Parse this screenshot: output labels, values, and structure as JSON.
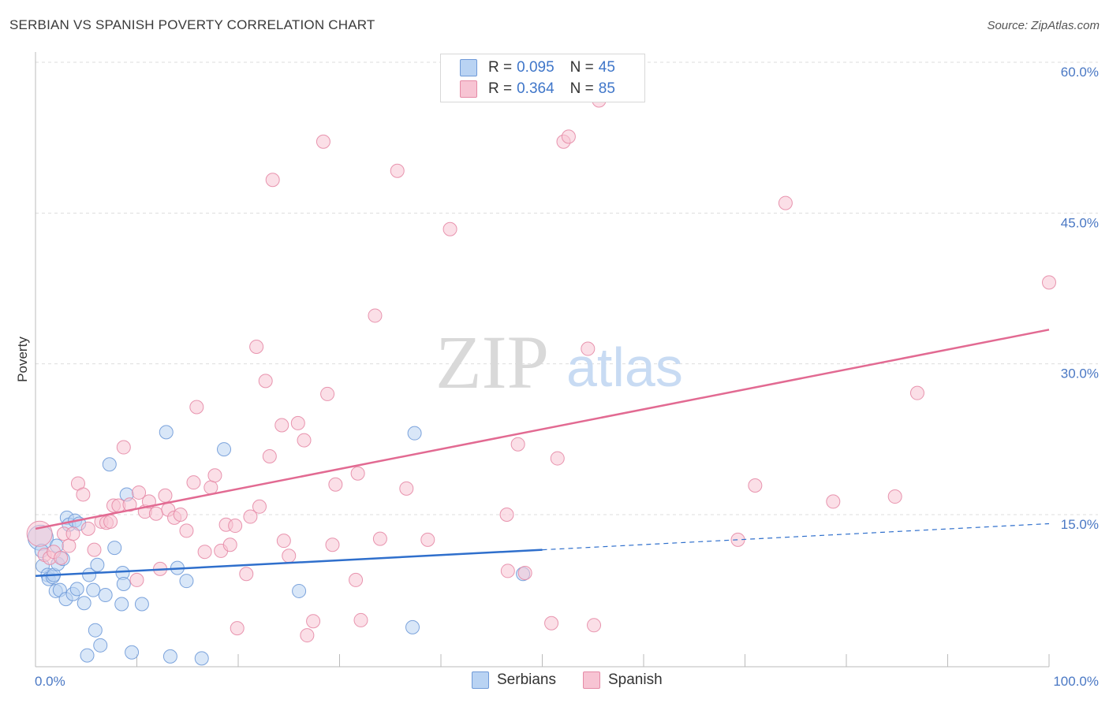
{
  "header": {
    "title": "SERBIAN VS SPANISH POVERTY CORRELATION CHART",
    "source": "Source: ZipAtlas.com"
  },
  "legend": {
    "serbians": {
      "r_label": "R =",
      "r_value": "0.095",
      "n_label": "N =",
      "n_value": "45"
    },
    "spanish": {
      "r_label": "R =",
      "r_value": "0.364",
      "n_label": "N =",
      "n_value": "85"
    }
  },
  "bottom_legend": {
    "serbians": "Serbians",
    "spanish": "Spanish"
  },
  "colors": {
    "serbians_fill": "#b9d3f3",
    "serbians_stroke": "#6f9ad8",
    "serbians_line": "#2f6fcc",
    "spanish_fill": "#f7c4d3",
    "spanish_stroke": "#e58aa6",
    "spanish_line": "#e26a92",
    "axis_label": "#4a78c4",
    "grid": "#dddddd"
  },
  "watermark": {
    "zip": "ZIP",
    "atlas": "atlas"
  },
  "chart_data": {
    "type": "scatter",
    "title": "SERBIAN VS SPANISH POVERTY CORRELATION CHART",
    "xlabel": "",
    "ylabel": "Poverty",
    "xlim": [
      0,
      100
    ],
    "ylim": [
      0,
      63
    ],
    "x_tick_labels": {
      "min": "0.0%",
      "max": "100.0%"
    },
    "y_ticks": [
      {
        "value": 15,
        "label": "15.0%"
      },
      {
        "value": 30,
        "label": "30.0%"
      },
      {
        "value": 45,
        "label": "45.0%"
      },
      {
        "value": 60,
        "label": "60.0%"
      }
    ],
    "series": [
      {
        "name": "Serbians",
        "r": 0.095,
        "n": 45,
        "trend": {
          "x0": 0,
          "y0": 8.9,
          "x1": 50,
          "y1": 11.5,
          "dash_to_x": 100,
          "dash_to_y": 14.1
        },
        "points": [
          [
            0.5,
            12.7
          ],
          [
            0.6,
            11.4
          ],
          [
            0.7,
            9.9
          ],
          [
            1.2,
            9.0
          ],
          [
            1.3,
            8.6
          ],
          [
            1.7,
            8.8
          ],
          [
            1.8,
            9.0
          ],
          [
            2.0,
            7.4
          ],
          [
            2.1,
            11.9
          ],
          [
            2.2,
            10.1
          ],
          [
            2.4,
            7.5
          ],
          [
            2.7,
            10.6
          ],
          [
            3.0,
            6.6
          ],
          [
            3.1,
            14.7
          ],
          [
            3.3,
            14.0
          ],
          [
            3.7,
            7.1
          ],
          [
            3.9,
            14.4
          ],
          [
            4.1,
            7.6
          ],
          [
            4.3,
            14.1
          ],
          [
            4.8,
            6.2
          ],
          [
            5.1,
            1.0
          ],
          [
            5.3,
            9.0
          ],
          [
            5.7,
            7.5
          ],
          [
            5.9,
            3.5
          ],
          [
            6.1,
            10.0
          ],
          [
            6.4,
            2.0
          ],
          [
            6.9,
            7.0
          ],
          [
            7.3,
            20.0
          ],
          [
            7.8,
            11.7
          ],
          [
            8.5,
            6.1
          ],
          [
            8.6,
            9.2
          ],
          [
            8.7,
            8.1
          ],
          [
            9.0,
            17.0
          ],
          [
            9.5,
            1.3
          ],
          [
            10.5,
            6.1
          ],
          [
            12.9,
            23.2
          ],
          [
            13.3,
            0.9
          ],
          [
            14.0,
            9.7
          ],
          [
            14.9,
            8.4
          ],
          [
            16.4,
            0.7
          ],
          [
            18.6,
            21.5
          ],
          [
            26.0,
            7.4
          ],
          [
            37.2,
            3.8
          ],
          [
            37.4,
            23.1
          ],
          [
            48.1,
            9.1
          ]
        ]
      },
      {
        "name": "Spanish",
        "r": 0.364,
        "n": 85,
        "trend": {
          "x0": 0,
          "y0": 13.6,
          "x1": 100,
          "y1": 33.4
        },
        "points": [
          [
            0.4,
            13.1
          ],
          [
            0.9,
            11.0
          ],
          [
            1.4,
            10.7
          ],
          [
            1.8,
            11.3
          ],
          [
            2.5,
            10.7
          ],
          [
            2.8,
            13.1
          ],
          [
            3.3,
            11.9
          ],
          [
            3.7,
            13.1
          ],
          [
            4.2,
            18.1
          ],
          [
            4.7,
            17.0
          ],
          [
            5.2,
            13.6
          ],
          [
            5.8,
            11.5
          ],
          [
            6.5,
            14.3
          ],
          [
            7.0,
            14.2
          ],
          [
            7.4,
            14.3
          ],
          [
            7.7,
            15.9
          ],
          [
            8.2,
            15.9
          ],
          [
            8.7,
            21.7
          ],
          [
            9.3,
            16.0
          ],
          [
            10.0,
            8.5
          ],
          [
            10.2,
            17.2
          ],
          [
            10.8,
            15.3
          ],
          [
            11.2,
            16.3
          ],
          [
            11.9,
            15.1
          ],
          [
            12.3,
            9.6
          ],
          [
            12.8,
            16.9
          ],
          [
            13.1,
            15.5
          ],
          [
            13.7,
            14.7
          ],
          [
            14.3,
            15.0
          ],
          [
            14.9,
            13.4
          ],
          [
            15.6,
            18.2
          ],
          [
            15.9,
            25.7
          ],
          [
            16.7,
            11.3
          ],
          [
            17.3,
            17.7
          ],
          [
            17.7,
            18.9
          ],
          [
            18.3,
            11.4
          ],
          [
            18.8,
            14.0
          ],
          [
            19.2,
            12.0
          ],
          [
            19.7,
            13.9
          ],
          [
            19.9,
            3.7
          ],
          [
            20.8,
            9.1
          ],
          [
            21.2,
            14.8
          ],
          [
            21.8,
            31.7
          ],
          [
            22.1,
            15.8
          ],
          [
            22.7,
            28.3
          ],
          [
            23.1,
            20.8
          ],
          [
            23.4,
            48.3
          ],
          [
            24.3,
            23.9
          ],
          [
            24.5,
            12.4
          ],
          [
            25.0,
            10.9
          ],
          [
            25.9,
            24.1
          ],
          [
            26.5,
            22.4
          ],
          [
            26.8,
            3.0
          ],
          [
            27.4,
            4.4
          ],
          [
            28.4,
            52.1
          ],
          [
            28.8,
            27.0
          ],
          [
            29.3,
            12.0
          ],
          [
            29.6,
            18.0
          ],
          [
            31.6,
            8.5
          ],
          [
            31.8,
            19.1
          ],
          [
            32.1,
            4.5
          ],
          [
            33.5,
            34.8
          ],
          [
            34.0,
            12.6
          ],
          [
            35.7,
            49.2
          ],
          [
            36.6,
            17.6
          ],
          [
            38.7,
            12.5
          ],
          [
            40.9,
            43.4
          ],
          [
            46.5,
            15.0
          ],
          [
            46.6,
            9.4
          ],
          [
            47.6,
            22.0
          ],
          [
            48.3,
            9.2
          ],
          [
            50.9,
            4.2
          ],
          [
            51.5,
            20.6
          ],
          [
            52.1,
            52.1
          ],
          [
            52.6,
            52.6
          ],
          [
            54.5,
            31.5
          ],
          [
            55.1,
            4.0
          ],
          [
            55.6,
            56.2
          ],
          [
            69.3,
            12.5
          ],
          [
            71.0,
            17.9
          ],
          [
            74.0,
            46.0
          ],
          [
            78.7,
            16.3
          ],
          [
            84.8,
            16.8
          ],
          [
            87.0,
            27.1
          ],
          [
            100.0,
            38.1
          ]
        ]
      }
    ]
  }
}
